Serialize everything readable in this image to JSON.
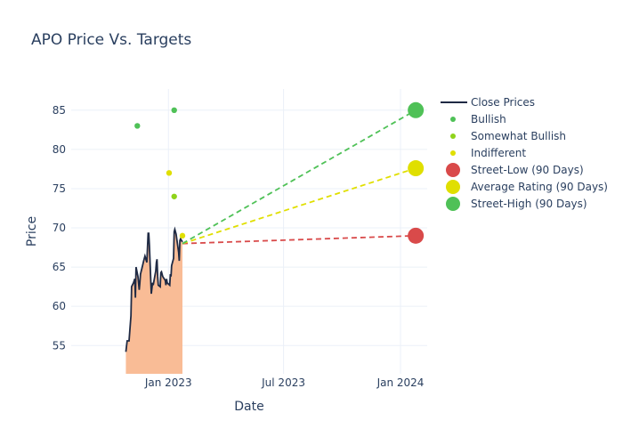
{
  "chart_data": {
    "type": "line",
    "title": "APO Price Vs. Targets",
    "xlabel": "Date",
    "ylabel": "Price",
    "xlim": [
      "2022-08-01",
      "2024-02-12"
    ],
    "ylim": [
      51.4,
      87.7
    ],
    "grid": true,
    "legend_position": "right",
    "x_ticks": [
      {
        "date": "2023-01-01",
        "label": "Jan 2023"
      },
      {
        "date": "2023-07-01",
        "label": "Jul 2023"
      },
      {
        "date": "2024-01-01",
        "label": "Jan 2024"
      }
    ],
    "y_ticks": [
      55,
      60,
      65,
      70,
      75,
      80,
      85
    ],
    "close_prices": {
      "name": "Close Prices",
      "color": "#1f2a44",
      "fill_color": "#f9bc96",
      "dates": [
        "2022-10-26",
        "2022-10-28",
        "2022-10-31",
        "2022-11-03",
        "2022-11-04",
        "2022-11-07",
        "2022-11-09",
        "2022-11-10",
        "2022-11-11",
        "2022-11-14",
        "2022-11-16",
        "2022-11-17",
        "2022-11-18",
        "2022-11-21",
        "2022-11-23",
        "2022-11-25",
        "2022-11-28",
        "2022-11-30",
        "2022-12-01",
        "2022-12-02",
        "2022-12-05",
        "2022-12-07",
        "2022-12-08",
        "2022-12-12",
        "2022-12-13",
        "2022-12-14",
        "2022-12-15",
        "2022-12-16",
        "2022-12-19",
        "2022-12-20",
        "2022-12-21",
        "2022-12-23",
        "2022-12-27",
        "2022-12-28",
        "2022-12-29",
        "2022-12-30",
        "2023-01-03",
        "2023-01-04",
        "2023-01-05",
        "2023-01-06",
        "2023-01-09",
        "2023-01-10",
        "2023-01-11",
        "2023-01-13",
        "2023-01-17",
        "2023-01-18",
        "2023-01-19",
        "2023-01-20",
        "2023-01-23"
      ],
      "values": [
        54.2,
        55.6,
        55.6,
        58.8,
        62.5,
        63.0,
        63.5,
        61.1,
        65.0,
        63.8,
        62.1,
        63.0,
        64.1,
        65.1,
        65.8,
        66.4,
        65.6,
        69.3,
        69.3,
        67.8,
        61.6,
        63.0,
        62.7,
        64.5,
        65.6,
        66.0,
        63.8,
        62.7,
        62.5,
        64.3,
        64.4,
        63.8,
        63.3,
        62.7,
        63.5,
        63.0,
        62.7,
        64.1,
        63.8,
        65.2,
        66.1,
        69.5,
        69.8,
        69.2,
        66.9,
        65.8,
        68.4,
        68.6,
        68.2
      ]
    },
    "rating_points": [
      {
        "series": "Bullish",
        "date": "2022-11-13",
        "value": 83
      },
      {
        "series": "Bullish",
        "date": "2023-01-10",
        "value": 85
      },
      {
        "series": "Somewhat Bullish",
        "date": "2023-01-10",
        "value": 74
      },
      {
        "series": "Indifferent",
        "date": "2023-01-02",
        "value": 77
      },
      {
        "series": "Indifferent",
        "date": "2023-01-23",
        "value": 69
      }
    ],
    "target_start": {
      "date": "2023-01-23",
      "value": 68.0
    },
    "targets": [
      {
        "series": "Street-Low (90 Days)",
        "date": "2024-01-25",
        "value": 69.0,
        "color": "#d94a4a"
      },
      {
        "series": "Average Rating (90 Days)",
        "date": "2024-01-25",
        "value": 77.6,
        "color": "#e0df00"
      },
      {
        "series": "Street-High (90 Days)",
        "date": "2024-01-25",
        "value": 85.0,
        "color": "#4fc157"
      }
    ],
    "legend": [
      {
        "label": "Close Prices",
        "kind": "line",
        "color": "#1f2a44"
      },
      {
        "label": "Bullish",
        "kind": "dot",
        "color": "#4fc157"
      },
      {
        "label": "Somewhat Bullish",
        "kind": "dot",
        "color": "#8fd31a"
      },
      {
        "label": "Indifferent",
        "kind": "dot",
        "color": "#e0df00"
      },
      {
        "label": "Street-Low (90 Days)",
        "kind": "big",
        "color": "#d94a4a"
      },
      {
        "label": "Average Rating (90 Days)",
        "kind": "big",
        "color": "#e0df00"
      },
      {
        "label": "Street-High (90 Days)",
        "kind": "big",
        "color": "#4fc157"
      }
    ],
    "series_colors": {
      "Bullish": "#4fc157",
      "Somewhat Bullish": "#8fd31a",
      "Indifferent": "#e0df00"
    }
  }
}
